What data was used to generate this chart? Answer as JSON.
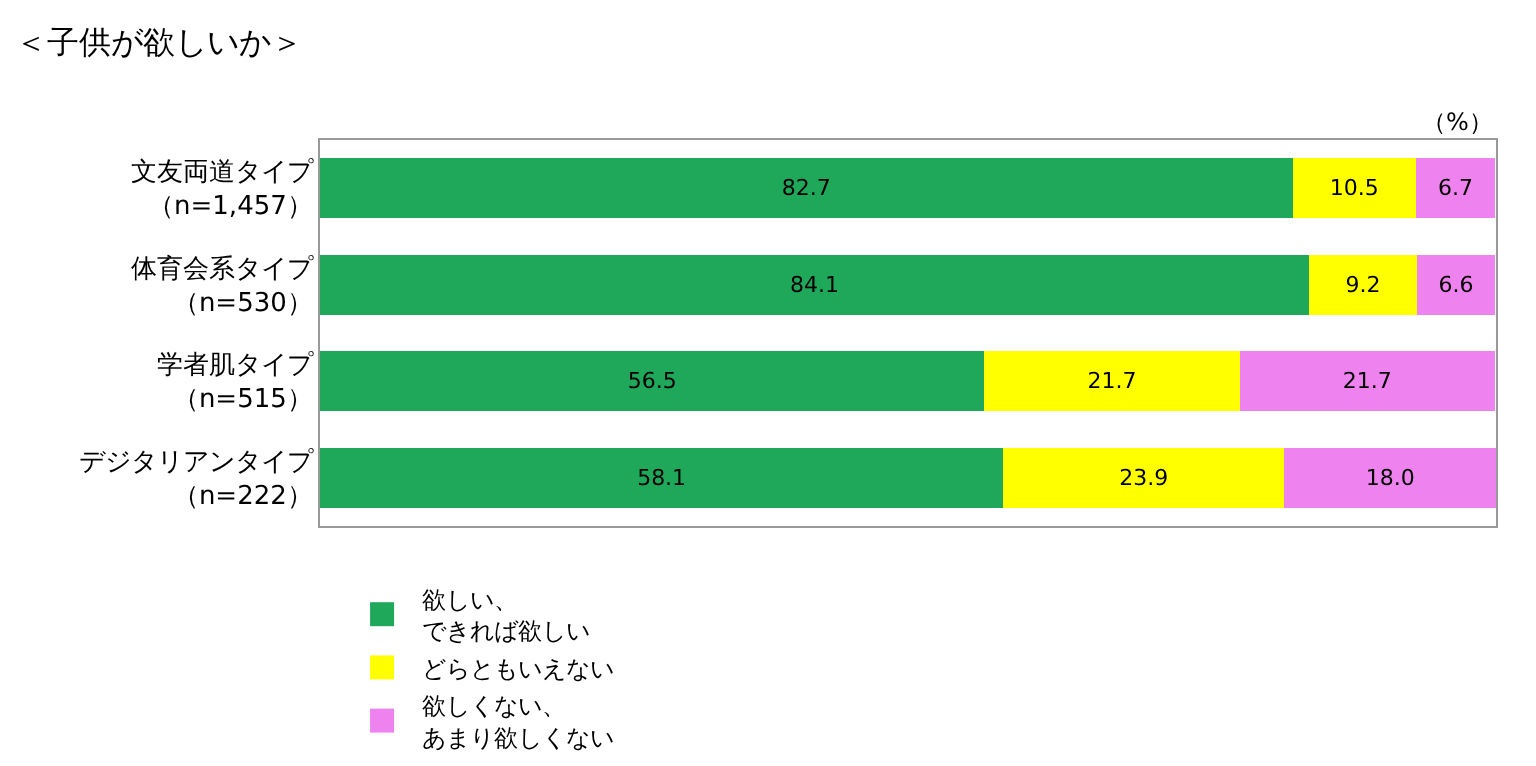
{
  "chart_data": {
    "type": "bar",
    "orientation": "horizontal",
    "stacked": true,
    "title": "＜子供が欲しいか＞",
    "categories": [
      "文友両道タイプ（n=1,457）",
      "体育会系タイプ（n=530）",
      "学者肌タイプ（n=515）",
      "デジタリアンタイプ（n=222）"
    ],
    "series": [
      {
        "name": "欲しい、できれば欲しい",
        "color": "#1fa85a",
        "values": [
          82.7,
          84.1,
          56.5,
          58.1
        ],
        "value_labels": [
          "82.7",
          "84.1",
          "56.5",
          "58.1"
        ]
      },
      {
        "name": "どらともいえない",
        "color": "#ffff00",
        "values": [
          10.5,
          9.2,
          21.7,
          23.9
        ],
        "value_labels": [
          "10.5",
          "9.2",
          "21.7",
          "23.9"
        ]
      },
      {
        "name": "欲しくない、あまり欲しくない",
        "color": "#ee82ee",
        "values": [
          6.7,
          6.6,
          21.7,
          18.0
        ],
        "value_labels": [
          "6.7",
          "6.6",
          "21.7",
          "18.0"
        ]
      }
    ],
    "xlim": [
      0,
      100
    ],
    "tick_labels": "y",
    "legend": "bottom",
    "annotations": [
      "（%）"
    ]
  }
}
